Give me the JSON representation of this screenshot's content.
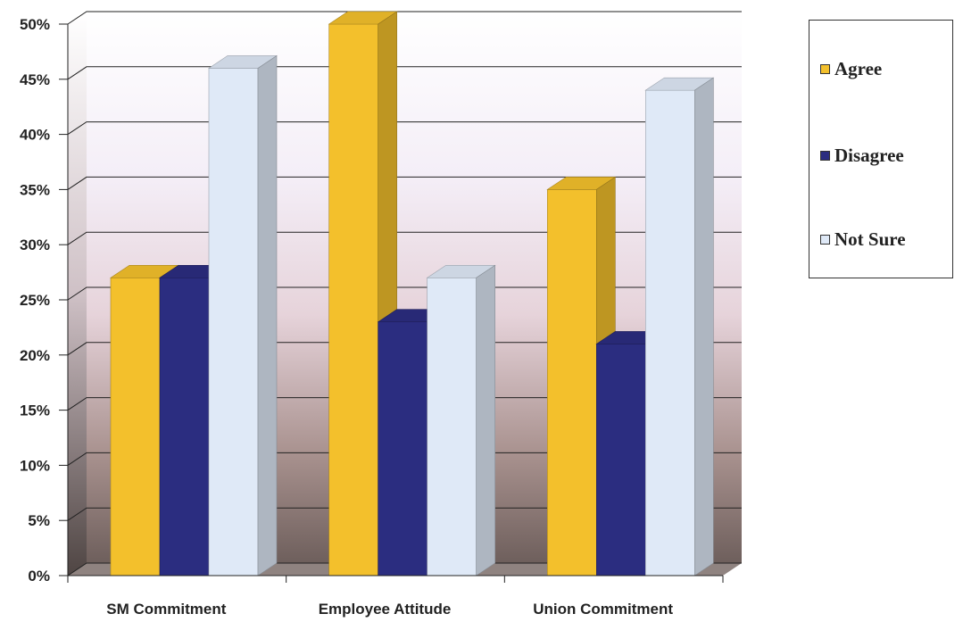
{
  "chart_data": {
    "type": "bar",
    "categories": [
      "SM Commitment",
      "Employee Attitude",
      "Union Commitment"
    ],
    "series": [
      {
        "name": "Agree",
        "values": [
          27,
          50,
          35
        ],
        "color": "#f3c02c"
      },
      {
        "name": "Disagree",
        "values": [
          27,
          23,
          21
        ],
        "color": "#2b2d80"
      },
      {
        "name": "Not Sure",
        "values": [
          46,
          27,
          44
        ],
        "color": "#dfe9f7"
      }
    ],
    "yticks": [
      "0%",
      "5%",
      "10%",
      "15%",
      "20%",
      "25%",
      "30%",
      "35%",
      "40%",
      "45%",
      "50%"
    ],
    "ylim": [
      0,
      50
    ],
    "grid": true,
    "legend_position": "right",
    "title": "",
    "xlabel": "",
    "ylabel": ""
  }
}
